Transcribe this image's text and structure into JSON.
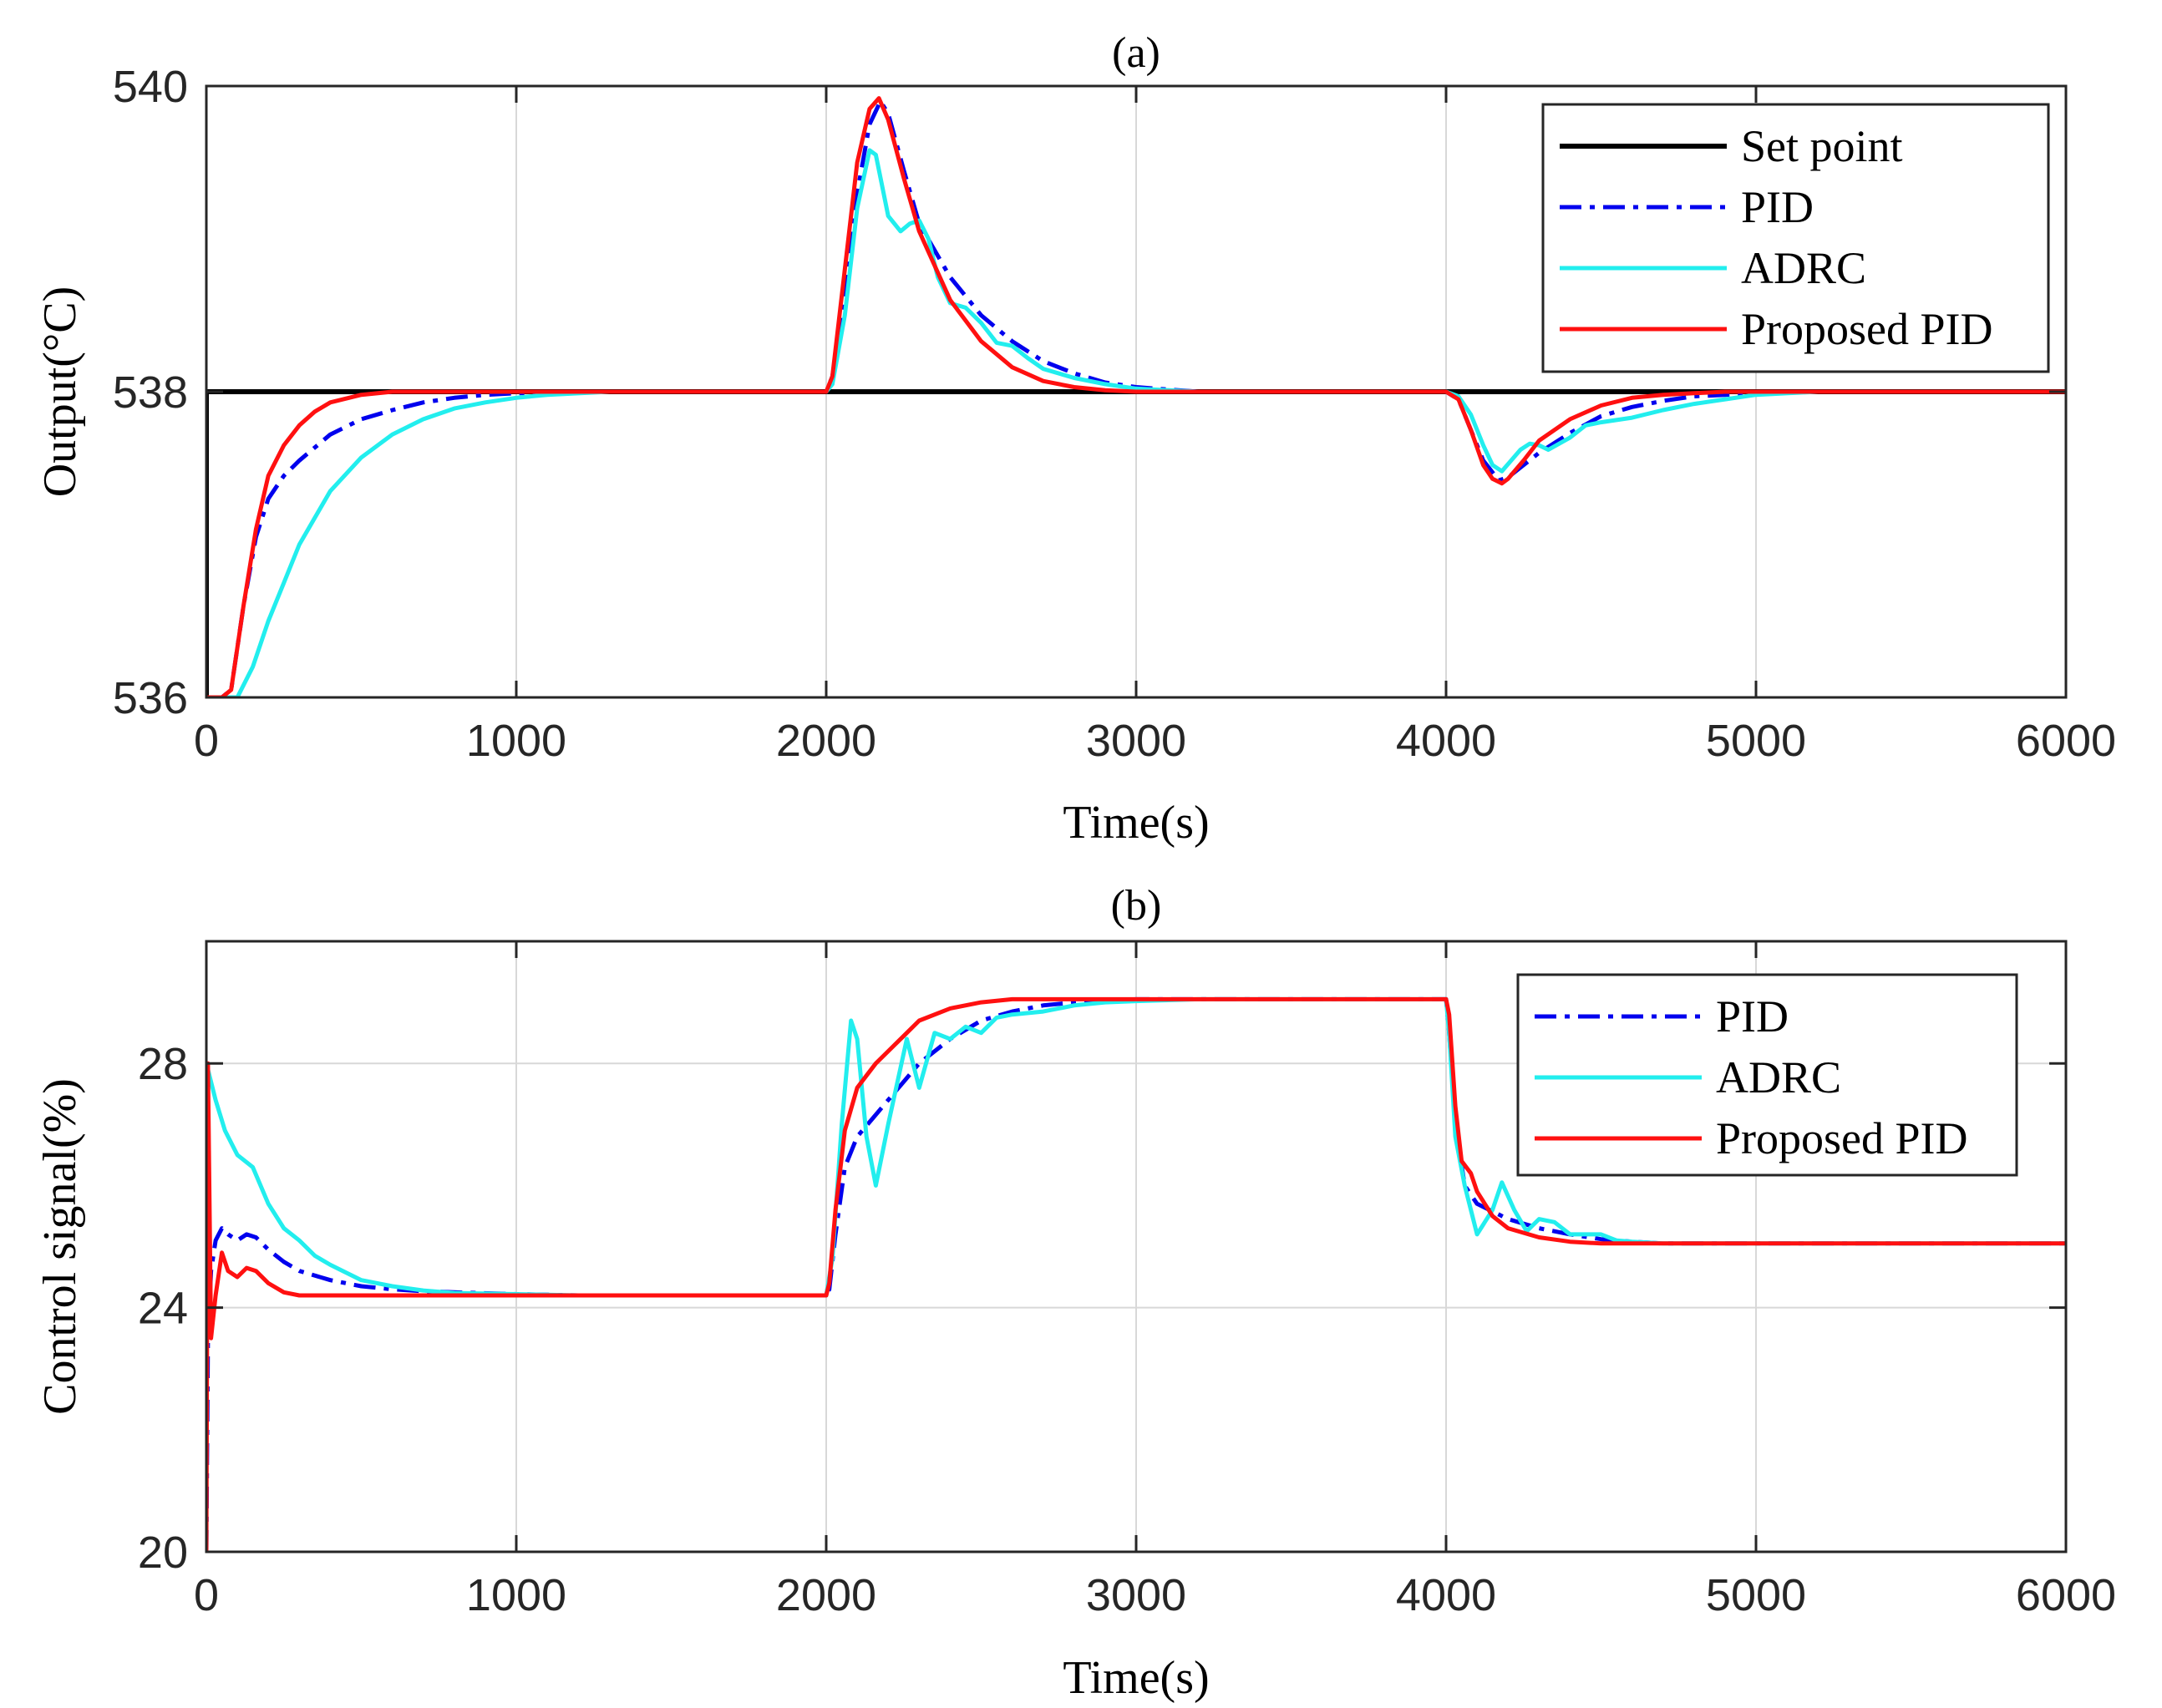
{
  "chart_data": [
    {
      "type": "line",
      "title": "(a)",
      "xlabel": "Time(s)",
      "ylabel": "Output(°C)",
      "xlim": [
        0,
        6000
      ],
      "ylim": [
        536,
        540
      ],
      "xticks": [
        0,
        1000,
        2000,
        3000,
        4000,
        5000,
        6000
      ],
      "xtick_labels": [
        "0",
        "1000",
        "2000",
        "3000",
        "4000",
        "5000",
        "6000"
      ],
      "yticks": [
        536,
        538,
        540
      ],
      "ytick_labels": [
        "536",
        "538",
        "540"
      ],
      "grid": true,
      "legend_position": "top-right",
      "series": [
        {
          "name": "Set point",
          "color": "#000000",
          "dash": "solid",
          "x": [
            0,
            0,
            6000
          ],
          "y": [
            536,
            538,
            538
          ]
        },
        {
          "name": "PID",
          "color": "#0000ee",
          "dash": "dashdot",
          "x": [
            0,
            50,
            80,
            120,
            160,
            200,
            250,
            300,
            400,
            500,
            600,
            700,
            800,
            900,
            1000,
            1200,
            2000,
            2020,
            2060,
            2100,
            2140,
            2175,
            2200,
            2250,
            2300,
            2400,
            2500,
            2600,
            2700,
            2800,
            2900,
            3000,
            3200,
            4000,
            4040,
            4080,
            4120,
            4170,
            4200,
            4250,
            4300,
            4400,
            4500,
            4600,
            4700,
            4800,
            4900,
            5000,
            5200,
            6000
          ],
          "y": [
            536,
            536,
            536.05,
            536.6,
            537.05,
            537.3,
            537.45,
            537.55,
            537.72,
            537.82,
            537.88,
            537.93,
            537.96,
            537.98,
            537.99,
            538,
            538,
            538.1,
            538.6,
            539.3,
            539.75,
            539.9,
            539.82,
            539.45,
            539.1,
            538.75,
            538.5,
            538.33,
            538.2,
            538.12,
            538.06,
            538.03,
            538,
            538,
            537.95,
            537.75,
            537.55,
            537.42,
            537.44,
            537.52,
            537.6,
            537.73,
            537.84,
            537.9,
            537.94,
            537.97,
            537.98,
            537.99,
            538,
            538
          ]
        },
        {
          "name": "ADRC",
          "color": "#22eeee",
          "dash": "solid",
          "x": [
            0,
            50,
            100,
            150,
            200,
            250,
            300,
            400,
            500,
            600,
            700,
            800,
            900,
            1000,
            1100,
            1300,
            2000,
            2020,
            2060,
            2100,
            2140,
            2160,
            2180,
            2200,
            2240,
            2270,
            2300,
            2330,
            2360,
            2400,
            2450,
            2500,
            2550,
            2600,
            2650,
            2700,
            2800,
            2900,
            3000,
            3200,
            4000,
            4040,
            4080,
            4120,
            4150,
            4180,
            4210,
            4240,
            4270,
            4300,
            4330,
            4400,
            4450,
            4500,
            4600,
            4700,
            4800,
            4900,
            5000,
            5200,
            6000
          ],
          "y": [
            536,
            536,
            536,
            536.2,
            536.5,
            536.75,
            537,
            537.35,
            537.57,
            537.72,
            537.82,
            537.89,
            537.93,
            537.96,
            537.98,
            538,
            538,
            538.05,
            538.5,
            539.2,
            539.58,
            539.55,
            539.35,
            539.15,
            539.05,
            539.1,
            539.12,
            539.0,
            538.75,
            538.58,
            538.55,
            538.45,
            538.32,
            538.3,
            538.22,
            538.15,
            538.09,
            538.05,
            538.02,
            538,
            538,
            537.97,
            537.85,
            537.65,
            537.52,
            537.48,
            537.55,
            537.62,
            537.66,
            537.65,
            537.62,
            537.7,
            537.78,
            537.8,
            537.83,
            537.88,
            537.92,
            537.95,
            537.98,
            538,
            538
          ]
        },
        {
          "name": "Proposed PID",
          "color": "#ff1010",
          "dash": "solid",
          "x": [
            0,
            50,
            80,
            120,
            160,
            200,
            250,
            300,
            350,
            400,
            500,
            600,
            700,
            800,
            2000,
            2020,
            2060,
            2100,
            2140,
            2170,
            2200,
            2250,
            2300,
            2400,
            2500,
            2600,
            2700,
            2800,
            2900,
            3000,
            4000,
            4040,
            4080,
            4120,
            4150,
            4180,
            4200,
            4250,
            4300,
            4400,
            4500,
            4600,
            4700,
            4800,
            4900,
            5000,
            6000
          ],
          "y": [
            536,
            536,
            536.05,
            536.6,
            537.1,
            537.45,
            537.65,
            537.78,
            537.87,
            537.93,
            537.98,
            538,
            538,
            538,
            538,
            538.1,
            538.8,
            539.5,
            539.85,
            539.92,
            539.78,
            539.4,
            539.05,
            538.6,
            538.33,
            538.16,
            538.07,
            538.03,
            538.01,
            538,
            538,
            537.95,
            537.75,
            537.52,
            537.43,
            537.4,
            537.43,
            537.55,
            537.68,
            537.82,
            537.91,
            537.96,
            537.98,
            537.99,
            538,
            538,
            538
          ]
        }
      ]
    },
    {
      "type": "line",
      "title": "(b)",
      "xlabel": "Time(s)",
      "ylabel": "Control signal(%)",
      "xlim": [
        0,
        6000
      ],
      "ylim": [
        20,
        30
      ],
      "xticks": [
        0,
        1000,
        2000,
        3000,
        4000,
        5000,
        6000
      ],
      "xtick_labels": [
        "0",
        "1000",
        "2000",
        "3000",
        "4000",
        "5000",
        "6000"
      ],
      "yticks": [
        20,
        24,
        28
      ],
      "ytick_labels": [
        "20",
        "24",
        "28"
      ],
      "grid": true,
      "legend_position": "top-right",
      "series": [
        {
          "name": "PID",
          "color": "#0000ee",
          "dash": "dashdot",
          "x": [
            0,
            5,
            15,
            30,
            50,
            70,
            100,
            130,
            160,
            200,
            250,
            300,
            400,
            500,
            600,
            700,
            800,
            1000,
            1200,
            2000,
            2010,
            2030,
            2060,
            2100,
            2150,
            2200,
            2300,
            2400,
            2500,
            2600,
            2700,
            2800,
            3000,
            3200,
            4000,
            4010,
            4030,
            4060,
            4100,
            4200,
            4300,
            4400,
            4500,
            4600,
            4700,
            6000
          ],
          "y": [
            20,
            23.5,
            24.6,
            25.1,
            25.3,
            25.2,
            25.1,
            25.2,
            25.15,
            24.95,
            24.75,
            24.6,
            24.45,
            24.35,
            24.3,
            24.27,
            24.25,
            24.22,
            24.2,
            24.2,
            24.3,
            25.2,
            26.3,
            26.8,
            27.1,
            27.4,
            28.0,
            28.4,
            28.7,
            28.85,
            28.95,
            29.0,
            29.05,
            29.05,
            29.05,
            28.5,
            27.0,
            26.0,
            25.7,
            25.45,
            25.3,
            25.2,
            25.12,
            25.08,
            25.05,
            25.05
          ]
        },
        {
          "name": "ADRC",
          "color": "#22eeee",
          "dash": "solid",
          "x": [
            0,
            10,
            30,
            60,
            100,
            150,
            200,
            250,
            300,
            350,
            400,
            500,
            600,
            700,
            800,
            1000,
            1200,
            2000,
            2020,
            2050,
            2080,
            2100,
            2130,
            2160,
            2200,
            2260,
            2300,
            2350,
            2400,
            2450,
            2500,
            2550,
            2600,
            2700,
            2800,
            2900,
            3000,
            3200,
            4000,
            4010,
            4030,
            4060,
            4100,
            4150,
            4180,
            4220,
            4260,
            4300,
            4350,
            4400,
            4450,
            4500,
            4550,
            4600,
            4700,
            6000
          ],
          "y": [
            28,
            27.8,
            27.4,
            26.9,
            26.5,
            26.3,
            25.7,
            25.3,
            25.1,
            24.85,
            24.7,
            24.45,
            24.35,
            24.28,
            24.24,
            24.22,
            24.2,
            24.2,
            24.8,
            27.0,
            28.7,
            28.4,
            26.8,
            26.0,
            27.0,
            28.4,
            27.6,
            28.5,
            28.4,
            28.6,
            28.5,
            28.75,
            28.8,
            28.85,
            28.95,
            29.0,
            29.02,
            29.05,
            29.05,
            28.5,
            26.8,
            26.0,
            25.2,
            25.6,
            26.05,
            25.6,
            25.25,
            25.45,
            25.4,
            25.2,
            25.2,
            25.2,
            25.1,
            25.08,
            25.05,
            25.05
          ]
        },
        {
          "name": "Proposed PID",
          "color": "#ff1010",
          "dash": "solid",
          "x": [
            0,
            5,
            15,
            30,
            50,
            70,
            100,
            130,
            160,
            200,
            250,
            300,
            400,
            500,
            600,
            800,
            1000,
            2000,
            2010,
            2030,
            2060,
            2100,
            2130,
            2160,
            2200,
            2250,
            2300,
            2400,
            2500,
            2600,
            2700,
            3000,
            4000,
            4010,
            4030,
            4050,
            4080,
            4100,
            4150,
            4200,
            4300,
            4400,
            4500,
            4600,
            6000
          ],
          "y": [
            20,
            28,
            23.5,
            24.2,
            24.9,
            24.6,
            24.5,
            24.65,
            24.6,
            24.4,
            24.25,
            24.2,
            24.2,
            24.2,
            24.2,
            24.2,
            24.2,
            24.2,
            24.4,
            25.6,
            26.9,
            27.6,
            27.8,
            28.0,
            28.2,
            28.45,
            28.7,
            28.9,
            29.0,
            29.05,
            29.05,
            29.05,
            29.05,
            28.8,
            27.3,
            26.4,
            26.2,
            25.9,
            25.5,
            25.3,
            25.15,
            25.08,
            25.05,
            25.05,
            25.05
          ]
        }
      ]
    }
  ]
}
